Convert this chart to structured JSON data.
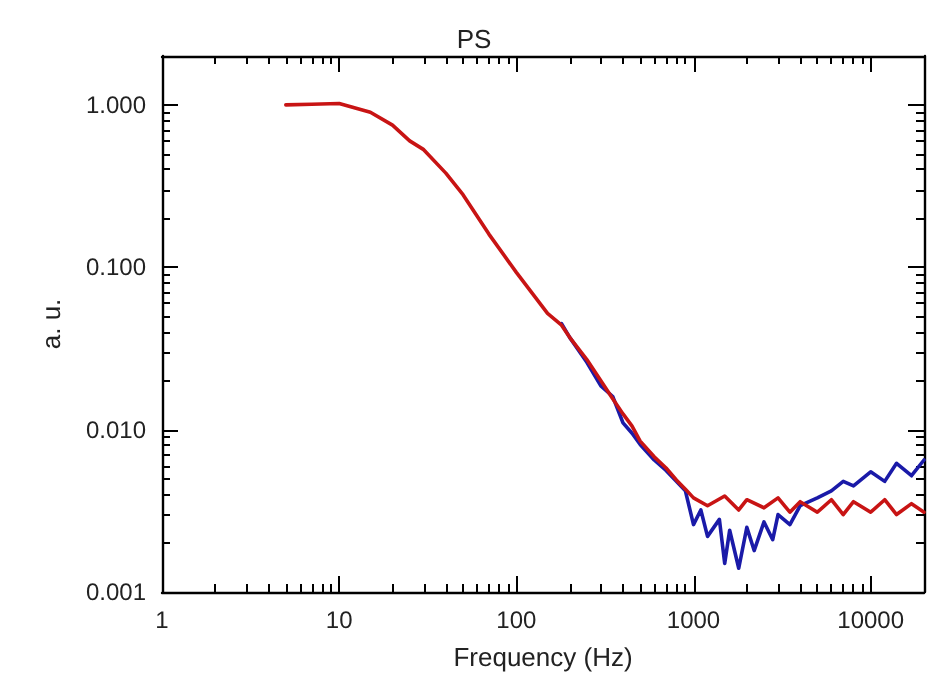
{
  "chart_data": {
    "type": "line",
    "title": "PS",
    "xlabel": "Frequency (Hz)",
    "ylabel": "a. u.",
    "log": "xy",
    "grid": false,
    "marker": "none",
    "line_style": "solid",
    "xlim": [
      1,
      20000
    ],
    "xticks": [
      1,
      10,
      100,
      1000,
      10000
    ],
    "ylim": [
      0.001,
      2
    ],
    "yticks": [
      {
        "value": 1,
        "label": "1.000"
      },
      {
        "value": 0.1,
        "label": "0.100"
      },
      {
        "value": 0.01,
        "label": "0.010"
      },
      {
        "value": 0.001,
        "label": "0.001"
      }
    ],
    "series": [
      {
        "color": "#1a1aa8",
        "x": [
          180,
          200,
          250,
          300,
          350,
          400,
          450,
          500,
          600,
          700,
          800,
          900,
          1000,
          1100,
          1200,
          1400,
          1500,
          1600,
          1800,
          2000,
          2200,
          2500,
          2800,
          3000,
          3500,
          4000,
          5000,
          6000,
          7000,
          8000,
          10000,
          12000,
          14000,
          17000,
          20000
        ],
        "values": [
          0.045,
          0.037,
          0.026,
          0.0186,
          0.016,
          0.011,
          0.0095,
          0.0081,
          0.0065,
          0.0056,
          0.0048,
          0.0042,
          0.0026,
          0.0032,
          0.0022,
          0.0028,
          0.0015,
          0.0024,
          0.0014,
          0.0025,
          0.0018,
          0.0027,
          0.0021,
          0.003,
          0.0026,
          0.0034,
          0.0038,
          0.0042,
          0.0048,
          0.0045,
          0.0055,
          0.0048,
          0.0062,
          0.0052,
          0.0065
        ]
      },
      {
        "color": "#c81414",
        "x": [
          5,
          7,
          10,
          15,
          20,
          25,
          30,
          40,
          50,
          70,
          100,
          150,
          180,
          200,
          250,
          300,
          350,
          400,
          450,
          500,
          600,
          700,
          800,
          900,
          1000,
          1200,
          1500,
          1800,
          2000,
          2500,
          3000,
          3500,
          4000,
          5000,
          6000,
          7000,
          8000,
          10000,
          12000,
          14000,
          17000,
          20000
        ],
        "values": [
          1.0,
          1.01,
          1.02,
          0.9,
          0.75,
          0.6,
          0.53,
          0.38,
          0.28,
          0.16,
          0.093,
          0.052,
          0.044,
          0.037,
          0.027,
          0.02,
          0.0155,
          0.0125,
          0.0105,
          0.0085,
          0.0068,
          0.0058,
          0.0049,
          0.0043,
          0.0038,
          0.0034,
          0.0039,
          0.0032,
          0.0037,
          0.0033,
          0.0038,
          0.0031,
          0.0036,
          0.0031,
          0.0037,
          0.003,
          0.0036,
          0.0031,
          0.0037,
          0.003,
          0.0035,
          0.0031
        ]
      }
    ]
  }
}
